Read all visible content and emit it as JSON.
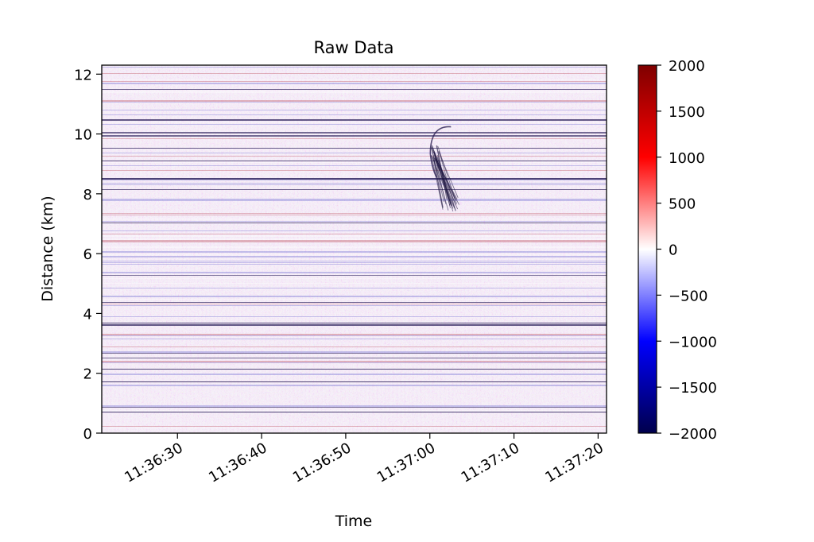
{
  "chart_data": {
    "type": "heatmap",
    "title": "Raw Data",
    "xlabel": "Time",
    "ylabel": "Distance (km)",
    "x_ticks": [
      "11:36:30",
      "11:36:40",
      "11:36:50",
      "11:37:00",
      "11:37:10",
      "11:37:20"
    ],
    "x_range": [
      "11:36:21",
      "11:37:21"
    ],
    "y_ticks": [
      0,
      2,
      4,
      6,
      8,
      10,
      12
    ],
    "ylim": [
      0,
      12.3
    ],
    "colorbar": {
      "colormap": "seismic",
      "range": [
        -2000,
        2000
      ],
      "ticks": [
        2000,
        1500,
        1000,
        500,
        0,
        -500,
        -1000,
        -1500,
        -2000
      ],
      "tick_labels": [
        "2000",
        "1500",
        "1000",
        "500",
        "0",
        "−500",
        "−1000",
        "−1500",
        "−2000"
      ]
    },
    "colors": {
      "negative": "#00004c",
      "zero": "#ffffff",
      "positive": "#7f0000"
    },
    "features": [
      {
        "label": "signal",
        "time_start": "11:36:59",
        "time_end": "11:37:03",
        "distance_km": [
          7.4,
          10.4
        ]
      }
    ]
  }
}
